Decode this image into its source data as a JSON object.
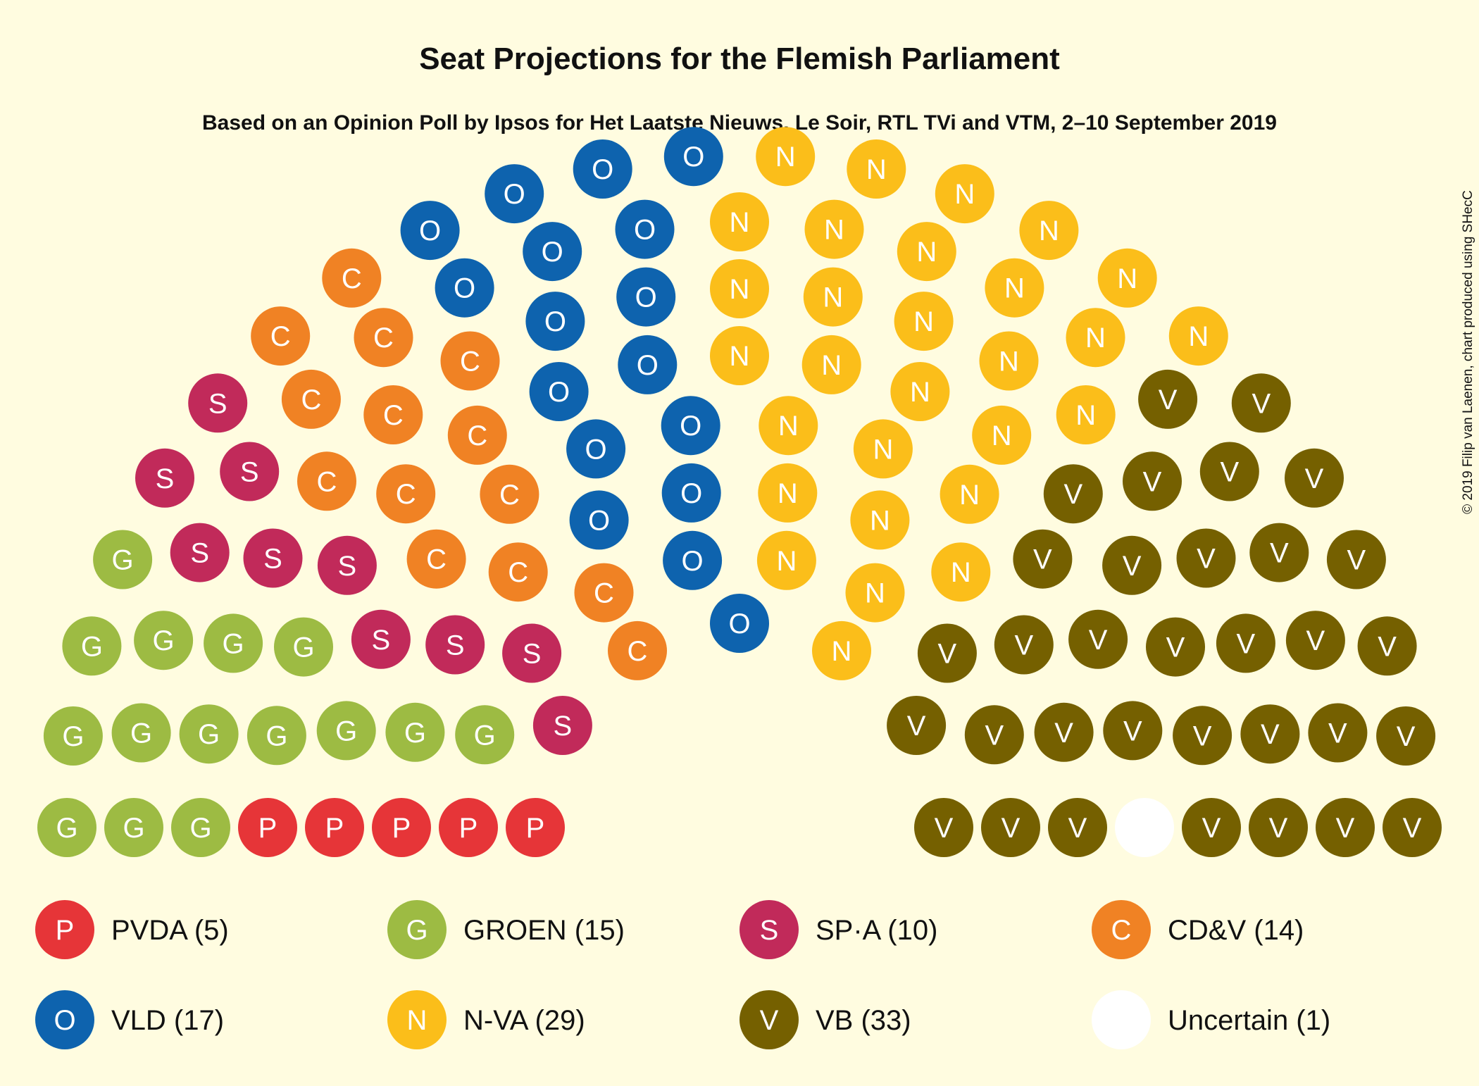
{
  "chart_data": {
    "type": "parliament",
    "title": "Seat Projections for the Flemish Parliament",
    "subtitle": "Based on an Opinion Poll by Ipsos for Het Laatste Nieuws, Le Soir, RTL TVi and VTM, 2–10 September 2019",
    "copyright": "© 2019 Filip van Laenen, chart produced using SHecC",
    "total_seats": 124,
    "parties": [
      {
        "name": "PVDA",
        "letter": "P",
        "seats": 5,
        "color": "#E63538",
        "label": "PVDA (5)"
      },
      {
        "name": "GROEN",
        "letter": "G",
        "seats": 15,
        "color": "#9DBB43",
        "label": "GROEN (15)"
      },
      {
        "name": "SP·A",
        "letter": "S",
        "seats": 10,
        "color": "#C12A5A",
        "label": "SP·A (10)"
      },
      {
        "name": "CD&V",
        "letter": "C",
        "seats": 14,
        "color": "#F08224",
        "label": "CD&V (14)"
      },
      {
        "name": "VLD",
        "letter": "O",
        "seats": 17,
        "color": "#0E63AE",
        "label": "VLD (17)"
      },
      {
        "name": "N-VA",
        "letter": "N",
        "seats": 29,
        "color": "#FBBE1A",
        "label": "N-VA (29)"
      },
      {
        "name": "VB",
        "letter": "V",
        "seats": 33,
        "color": "#756000",
        "label": "VB (33)"
      },
      {
        "name": "Uncertain",
        "letter": "",
        "seats": 1,
        "color": "#FFFFFF",
        "label": "Uncertain (1)"
      }
    ]
  }
}
